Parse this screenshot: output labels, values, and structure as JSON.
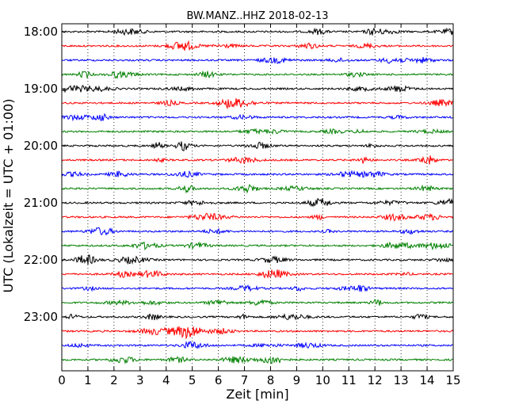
{
  "chart_data": {
    "type": "line",
    "title": "BW.MANZ..HHZ 2018-02-13",
    "xlabel": "Zeit  [min]",
    "ylabel": "UTC (Lokalzeit = UTC + 01:00)",
    "xlim": [
      0,
      15
    ],
    "x_ticks": [
      "0",
      "1",
      "2",
      "3",
      "4",
      "5",
      "6",
      "7",
      "8",
      "9",
      "10",
      "11",
      "12",
      "13",
      "14",
      "15"
    ],
    "y_ticks": [
      "18:00",
      "19:00",
      "20:00",
      "21:00",
      "22:00",
      "23:00"
    ],
    "grid": "vertical dotted at each minute",
    "trace_colors": [
      "#000000",
      "#ff0000",
      "#0000ff",
      "#008000"
    ],
    "trace_count": 24,
    "trace_interval_minutes": 15,
    "start_time": "18:00"
  }
}
